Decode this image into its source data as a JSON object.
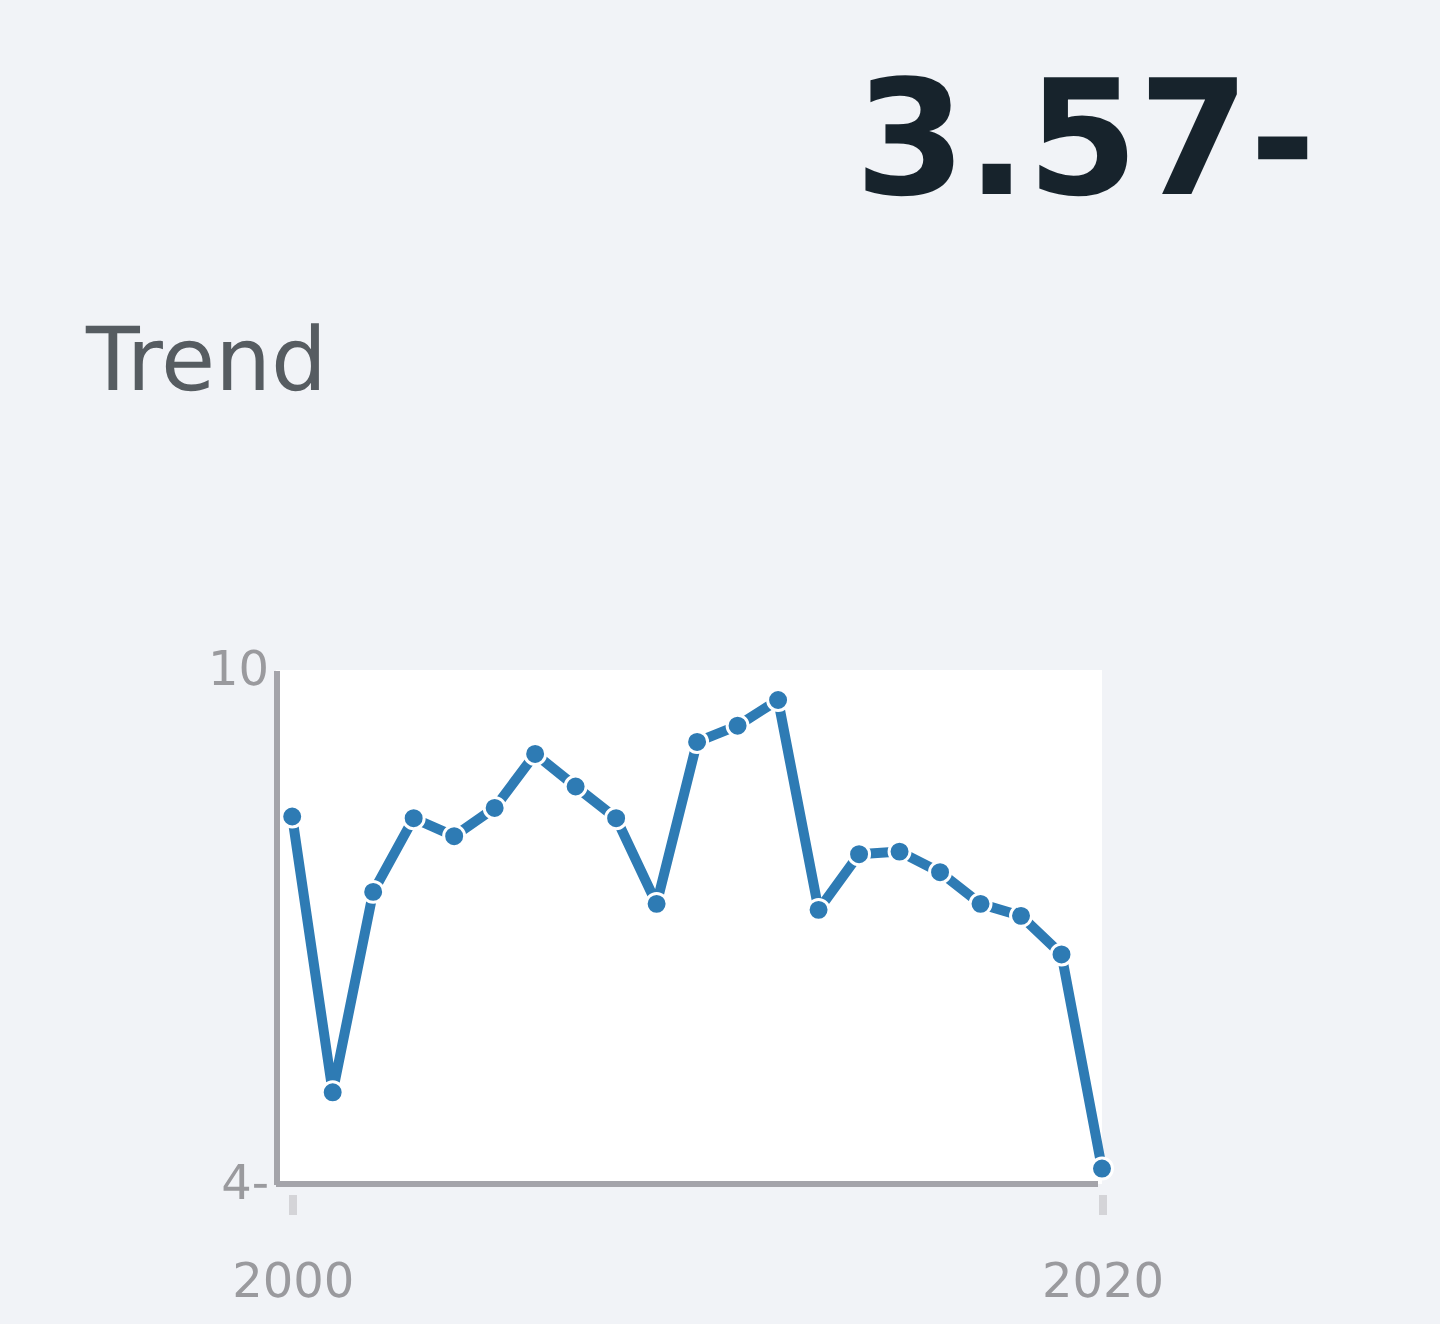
{
  "chart_data": {
    "type": "line",
    "title": "Trend",
    "annotations": [
      "3.57-"
    ],
    "x": [
      2000,
      2001,
      2002,
      2003,
      2004,
      2005,
      2006,
      2007,
      2008,
      2009,
      2010,
      2011,
      2012,
      2013,
      2014,
      2015,
      2016,
      2017,
      2018,
      2019,
      2020
    ],
    "series": [
      {
        "color": "#2e7bb4",
        "values": [
          8.29,
          5.07,
          7.41,
          8.27,
          8.06,
          8.39,
          9.02,
          8.64,
          8.27,
          7.27,
          9.16,
          9.35,
          9.65,
          7.2,
          7.85,
          7.88,
          7.64,
          7.27,
          7.13,
          6.68,
          4.18
        ]
      }
    ],
    "xlim": [
      1999.6,
      2020
    ],
    "xticks": [
      2000,
      2020
    ],
    "ylim": [
      4,
      10
    ],
    "yticks": [
      {
        "value": 4,
        "label": "4-"
      },
      10
    ],
    "grid": false,
    "marker": "circle",
    "line_style": "solid"
  }
}
